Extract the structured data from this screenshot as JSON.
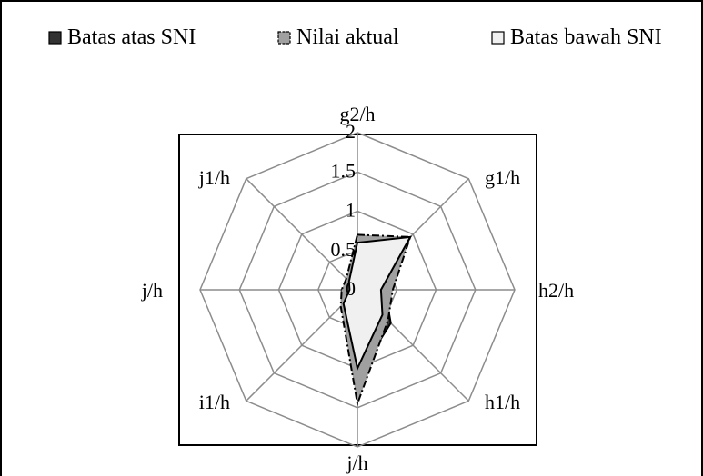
{
  "chart_data": {
    "type": "radar",
    "title": "",
    "categories": [
      "g2/h",
      "g1/h",
      "h2/h",
      "h1/h",
      "j/h",
      "i1/h",
      "j/h",
      "j1/h"
    ],
    "rlim": [
      0,
      2
    ],
    "rticks": [
      "0",
      "0.5",
      "1",
      "1.5",
      "2"
    ],
    "grid": true,
    "legend_position": "top",
    "series": [
      {
        "name": "Batas atas SNI",
        "values": [
          0.65,
          0.95,
          0.35,
          0.6,
          1.1,
          0.28,
          0.2,
          0.15
        ],
        "fill": "#333333",
        "stroke": "#000000",
        "stroke_style": "solid"
      },
      {
        "name": "Nilai aktual",
        "values": [
          0.7,
          0.95,
          0.45,
          0.55,
          1.45,
          0.3,
          0.2,
          0.2
        ],
        "fill": "#a0a0a0",
        "stroke": "#000000",
        "stroke_style": "dash-dot"
      },
      {
        "name": "Batas bawah SNI",
        "values": [
          0.6,
          0.95,
          0.3,
          0.45,
          1.0,
          0.25,
          0.1,
          0.15
        ],
        "fill": "#f0f0f0",
        "stroke": "#000000",
        "stroke_style": "solid"
      }
    ]
  }
}
